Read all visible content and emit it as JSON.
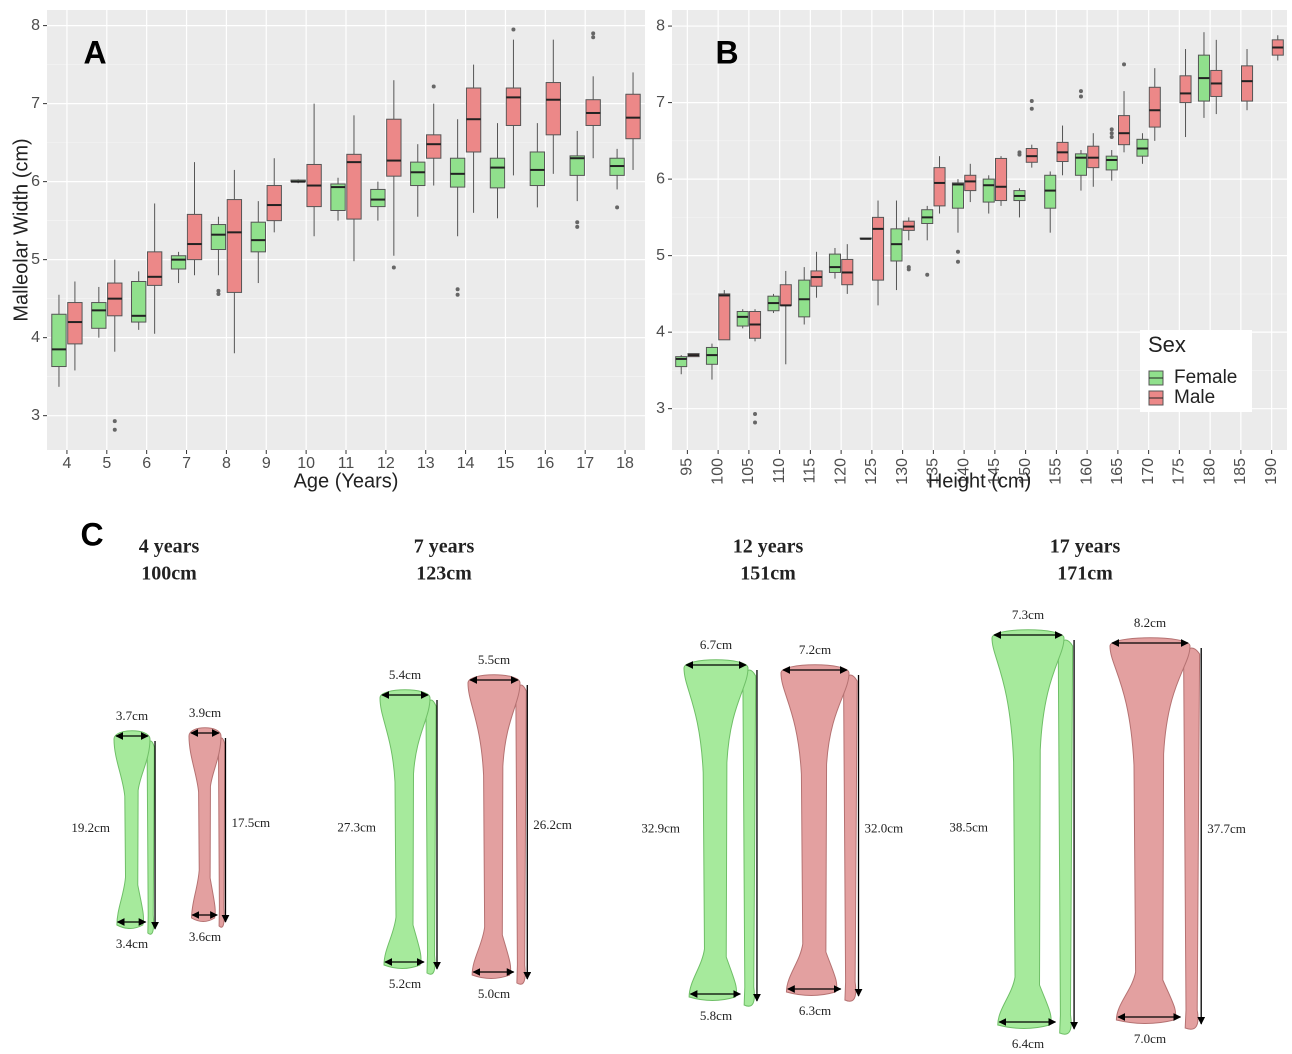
{
  "chart_data": [
    {
      "type": "box",
      "panel_label": "A",
      "y_label": "Malleolar Width (cm)",
      "x_label": "Age (Years)",
      "categories": [
        "4",
        "5",
        "6",
        "7",
        "8",
        "9",
        "10",
        "11",
        "12",
        "13",
        "14",
        "15",
        "16",
        "17",
        "18"
      ],
      "series": [
        {
          "color": "#90e08c",
          "boxes": [
            {
              "min": 3.37,
              "q1": 3.63,
              "median": 3.85,
              "q3": 4.3,
              "max": 4.55
            },
            {
              "min": 4.0,
              "q1": 4.12,
              "median": 4.35,
              "q3": 4.45,
              "max": 4.65
            },
            {
              "min": 4.1,
              "q1": 4.2,
              "median": 4.28,
              "q3": 4.72,
              "max": 4.85
            },
            {
              "min": 4.7,
              "q1": 4.88,
              "median": 5.0,
              "q3": 5.05,
              "max": 5.1
            },
            {
              "min": 4.8,
              "q1": 5.13,
              "median": 5.32,
              "q3": 5.45,
              "max": 5.55,
              "outliers": [
                4.6,
                4.56
              ]
            },
            {
              "min": 4.7,
              "q1": 5.1,
              "median": 5.25,
              "q3": 5.48,
              "max": 5.75
            },
            {
              "min": 5.98,
              "q1": 6.0,
              "median": 6.0,
              "q3": 6.02,
              "max": 6.03
            },
            {
              "min": 5.5,
              "q1": 5.63,
              "median": 5.93,
              "q3": 5.97,
              "max": 6.05
            },
            {
              "min": 5.5,
              "q1": 5.68,
              "median": 5.77,
              "q3": 5.9,
              "max": 6.0
            },
            {
              "min": 5.55,
              "q1": 5.95,
              "median": 6.12,
              "q3": 6.25,
              "max": 6.48
            },
            {
              "min": 5.3,
              "q1": 5.93,
              "median": 6.1,
              "q3": 6.3,
              "max": 6.8,
              "outliers": [
                4.62,
                4.55
              ]
            },
            {
              "min": 5.53,
              "q1": 5.92,
              "median": 6.18,
              "q3": 6.3,
              "max": 6.75
            },
            {
              "min": 5.67,
              "q1": 5.95,
              "median": 6.15,
              "q3": 6.38,
              "max": 6.75
            },
            {
              "min": 5.75,
              "q1": 6.08,
              "median": 6.3,
              "q3": 6.33,
              "max": 6.65,
              "outliers": [
                5.48,
                5.42
              ]
            },
            {
              "min": 5.9,
              "q1": 6.08,
              "median": 6.2,
              "q3": 6.3,
              "max": 6.42,
              "outliers": [
                5.67
              ]
            }
          ]
        },
        {
          "color": "#ec8888",
          "boxes": [
            {
              "min": 3.58,
              "q1": 3.92,
              "median": 4.2,
              "q3": 4.45,
              "max": 4.72
            },
            {
              "min": 3.82,
              "q1": 4.28,
              "median": 4.5,
              "q3": 4.7,
              "max": 5.0,
              "outliers": [
                2.93,
                2.82
              ]
            },
            {
              "min": 4.05,
              "q1": 4.67,
              "median": 4.78,
              "q3": 5.1,
              "max": 5.72
            },
            {
              "min": 4.8,
              "q1": 5.0,
              "median": 5.2,
              "q3": 5.58,
              "max": 6.25
            },
            {
              "min": 3.8,
              "q1": 4.58,
              "median": 5.35,
              "q3": 5.77,
              "max": 6.15
            },
            {
              "min": 5.35,
              "q1": 5.5,
              "median": 5.7,
              "q3": 5.95,
              "max": 6.3
            },
            {
              "min": 5.3,
              "q1": 5.68,
              "median": 5.95,
              "q3": 6.22,
              "max": 7.0
            },
            {
              "min": 4.98,
              "q1": 5.52,
              "median": 6.25,
              "q3": 6.35,
              "max": 6.85
            },
            {
              "min": 5.05,
              "q1": 6.07,
              "median": 6.27,
              "q3": 6.8,
              "max": 7.3,
              "outliers": [
                4.9
              ]
            },
            {
              "min": 5.95,
              "q1": 6.3,
              "median": 6.48,
              "q3": 6.6,
              "max": 7.0,
              "outliers": [
                7.22
              ]
            },
            {
              "min": 5.6,
              "q1": 6.38,
              "median": 6.8,
              "q3": 7.2,
              "max": 7.5
            },
            {
              "min": 6.08,
              "q1": 6.72,
              "median": 7.08,
              "q3": 7.2,
              "max": 7.82,
              "outliers": [
                7.95
              ]
            },
            {
              "min": 6.1,
              "q1": 6.6,
              "median": 7.05,
              "q3": 7.27,
              "max": 7.82
            },
            {
              "min": 6.3,
              "q1": 6.72,
              "median": 6.88,
              "q3": 7.05,
              "max": 7.35,
              "outliers": [
                7.9,
                7.85
              ]
            },
            {
              "min": 6.15,
              "q1": 6.55,
              "median": 6.82,
              "q3": 7.12,
              "max": 7.4
            }
          ]
        }
      ],
      "ylim": [
        2.56,
        8.2
      ],
      "yticks": [
        3,
        4,
        5,
        6,
        7,
        8
      ],
      "grid": true
    },
    {
      "type": "box",
      "panel_label": "B",
      "x_label": "Height (cm)",
      "categories": [
        "95",
        "100",
        "105",
        "110",
        "115",
        "120",
        "125",
        "130",
        "135",
        "140",
        "145",
        "150",
        "155",
        "160",
        "165",
        "170",
        "175",
        "180",
        "185",
        "190"
      ],
      "series": [
        {
          "name": "Female",
          "color": "#90e08c",
          "boxes": [
            {
              "min": 3.45,
              "q1": 3.55,
              "median": 3.65,
              "q3": 3.68,
              "max": 3.7
            },
            {
              "min": 3.38,
              "q1": 3.58,
              "median": 3.7,
              "q3": 3.8,
              "max": 3.85
            },
            {
              "min": 4.05,
              "q1": 4.08,
              "median": 4.2,
              "q3": 4.27,
              "max": 4.3
            },
            {
              "min": 4.25,
              "q1": 4.28,
              "median": 4.38,
              "q3": 4.47,
              "max": 4.5
            },
            {
              "min": 4.1,
              "q1": 4.2,
              "median": 4.43,
              "q3": 4.68,
              "max": 4.85
            },
            {
              "min": 4.7,
              "q1": 4.78,
              "median": 4.85,
              "q3": 5.02,
              "max": 5.1
            },
            {
              "min": 5.22,
              "q1": 5.22,
              "median": 5.22,
              "q3": 5.23,
              "max": 5.23
            },
            {
              "min": 4.55,
              "q1": 4.93,
              "median": 5.15,
              "q3": 5.35,
              "max": 5.72
            },
            {
              "min": 5.2,
              "q1": 5.42,
              "median": 5.5,
              "q3": 5.6,
              "max": 5.65,
              "outliers": [
                4.75
              ]
            },
            {
              "min": 5.3,
              "q1": 5.62,
              "median": 5.93,
              "q3": 5.95,
              "max": 6.0,
              "outliers": [
                5.05,
                4.92
              ]
            },
            {
              "min": 5.55,
              "q1": 5.7,
              "median": 5.92,
              "q3": 6.0,
              "max": 6.05
            },
            {
              "min": 5.5,
              "q1": 5.72,
              "median": 5.78,
              "q3": 5.85,
              "max": 5.88,
              "outliers": [
                6.35,
                6.32
              ]
            },
            {
              "min": 5.3,
              "q1": 5.62,
              "median": 5.85,
              "q3": 6.05,
              "max": 6.1
            },
            {
              "min": 5.85,
              "q1": 6.05,
              "median": 6.28,
              "q3": 6.33,
              "max": 6.38,
              "outliers": [
                7.15,
                7.08
              ]
            },
            {
              "min": 5.98,
              "q1": 6.12,
              "median": 6.25,
              "q3": 6.3,
              "max": 6.38,
              "outliers": [
                6.65,
                6.6,
                6.55
              ]
            },
            {
              "min": 6.2,
              "q1": 6.3,
              "median": 6.4,
              "q3": 6.52,
              "max": 6.6
            },
            null,
            {
              "min": 6.8,
              "q1": 7.02,
              "median": 7.32,
              "q3": 7.62,
              "max": 7.92
            },
            null,
            null
          ]
        },
        {
          "name": "Male",
          "color": "#ec8888",
          "boxes": [
            {
              "min": 3.68,
              "q1": 3.68,
              "median": 3.7,
              "q3": 3.72,
              "max": 3.72
            },
            {
              "min": 3.9,
              "q1": 3.9,
              "median": 4.48,
              "q3": 4.5,
              "max": 4.55
            },
            {
              "min": 3.88,
              "q1": 3.92,
              "median": 4.1,
              "q3": 4.27,
              "max": 4.3,
              "outliers": [
                2.93,
                2.82
              ]
            },
            {
              "min": 3.58,
              "q1": 4.35,
              "median": 4.35,
              "q3": 4.62,
              "max": 4.8
            },
            {
              "min": 4.45,
              "q1": 4.6,
              "median": 4.72,
              "q3": 4.8,
              "max": 5.05
            },
            {
              "min": 4.5,
              "q1": 4.62,
              "median": 4.78,
              "q3": 4.95,
              "max": 5.15
            },
            {
              "min": 4.35,
              "q1": 4.68,
              "median": 5.35,
              "q3": 5.5,
              "max": 5.72
            },
            {
              "min": 5.2,
              "q1": 5.33,
              "median": 5.38,
              "q3": 5.45,
              "max": 5.5,
              "outliers": [
                4.85,
                4.82
              ]
            },
            {
              "min": 5.55,
              "q1": 5.65,
              "median": 5.95,
              "q3": 6.15,
              "max": 6.3
            },
            {
              "min": 5.7,
              "q1": 5.85,
              "median": 5.97,
              "q3": 6.05,
              "max": 6.2
            },
            {
              "min": 5.65,
              "q1": 5.72,
              "median": 5.9,
              "q3": 6.27,
              "max": 6.3
            },
            {
              "min": 6.15,
              "q1": 6.22,
              "median": 6.3,
              "q3": 6.4,
              "max": 6.45,
              "outliers": [
                7.02,
                6.92
              ]
            },
            {
              "min": 6.05,
              "q1": 6.23,
              "median": 6.35,
              "q3": 6.48,
              "max": 6.7
            },
            {
              "min": 5.9,
              "q1": 6.15,
              "median": 6.28,
              "q3": 6.43,
              "max": 6.6
            },
            {
              "min": 6.35,
              "q1": 6.45,
              "median": 6.6,
              "q3": 6.83,
              "max": 7.15,
              "outliers": [
                7.5
              ]
            },
            {
              "min": 6.5,
              "q1": 6.68,
              "median": 6.9,
              "q3": 7.2,
              "max": 7.45
            },
            {
              "min": 6.55,
              "q1": 7.0,
              "median": 7.12,
              "q3": 7.35,
              "max": 7.7
            },
            {
              "min": 6.85,
              "q1": 7.08,
              "median": 7.25,
              "q3": 7.42,
              "max": 7.82
            },
            {
              "min": 6.9,
              "q1": 7.02,
              "median": 7.28,
              "q3": 7.48,
              "max": 7.7
            },
            {
              "min": 7.55,
              "q1": 7.62,
              "median": 7.72,
              "q3": 7.82,
              "max": 7.88
            }
          ]
        }
      ],
      "ylim": [
        2.46,
        8.21
      ],
      "yticks": [
        3,
        4,
        5,
        6,
        7,
        8
      ],
      "grid": true,
      "legend_title": "Sex",
      "legend": "bottom-right"
    }
  ],
  "panel_c": {
    "label": "C",
    "groups": [
      {
        "age": "4 years",
        "height": "100cm",
        "female": {
          "top_width": "3.7cm",
          "length": "19.2cm",
          "bottom_width": "3.4cm"
        },
        "male": {
          "top_width": "3.9cm",
          "length": "17.5cm",
          "bottom_width": "3.6cm"
        }
      },
      {
        "age": "7 years",
        "height": "123cm",
        "female": {
          "top_width": "5.4cm",
          "length": "27.3cm",
          "bottom_width": "5.2cm"
        },
        "male": {
          "top_width": "5.5cm",
          "length": "26.2cm",
          "bottom_width": "5.0cm"
        }
      },
      {
        "age": "12 years",
        "height": "151cm",
        "female": {
          "top_width": "6.7cm",
          "length": "32.9cm",
          "bottom_width": "5.8cm"
        },
        "male": {
          "top_width": "7.2cm",
          "length": "32.0cm",
          "bottom_width": "6.3cm"
        }
      },
      {
        "age": "17 years",
        "height": "171cm",
        "female": {
          "top_width": "7.3cm",
          "length": "38.5cm",
          "bottom_width": "6.4cm"
        },
        "male": {
          "top_width": "8.2cm",
          "length": "37.7cm",
          "bottom_width": "7.0cm"
        }
      }
    ]
  }
}
